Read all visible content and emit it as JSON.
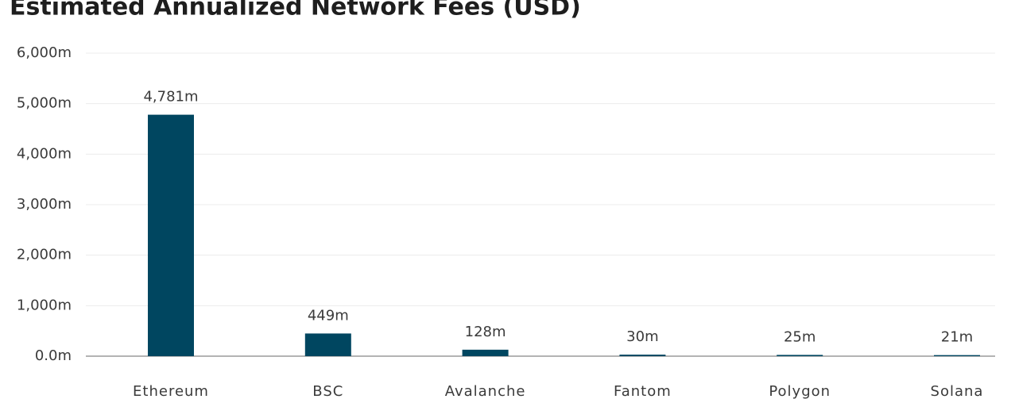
{
  "chart_data": {
    "type": "bar",
    "title": "Estimated Annualized Network Fees (USD)",
    "categories": [
      "Ethereum",
      "BSC",
      "Avalanche",
      "Fantom",
      "Polygon",
      "Solana"
    ],
    "values": [
      4781,
      449,
      128,
      30,
      25,
      21
    ],
    "value_labels": [
      "4,781m",
      "449m",
      "128m",
      "30m",
      "25m",
      "21m"
    ],
    "color": "#004660",
    "ylim": [
      0,
      6000
    ],
    "yticks": [
      {
        "value": 0,
        "label": "0.0m"
      },
      {
        "value": 1000,
        "label": "1,000m"
      },
      {
        "value": 2000,
        "label": "2,000m"
      },
      {
        "value": 3000,
        "label": "3,000m"
      },
      {
        "value": 4000,
        "label": "4,000m"
      },
      {
        "value": 5000,
        "label": "5,000m"
      },
      {
        "value": 6000,
        "label": "6,000m"
      }
    ],
    "grid": true
  }
}
